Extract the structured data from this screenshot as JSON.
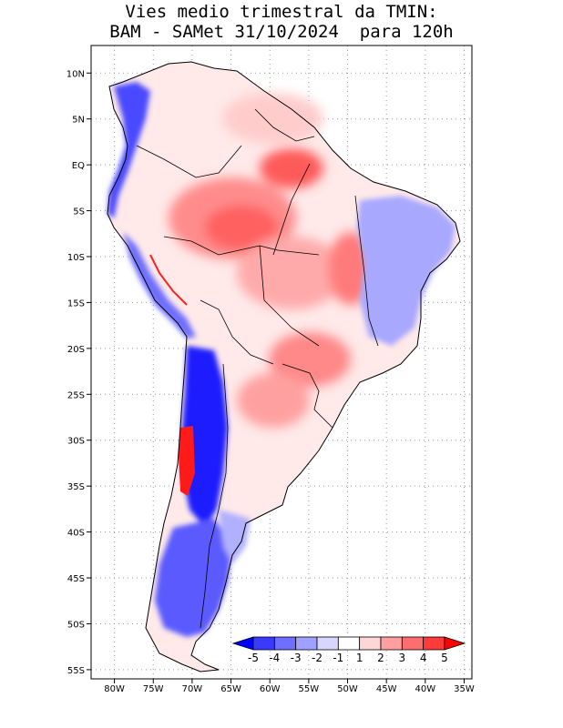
{
  "title": {
    "line1": "Vies medio trimestral da TMIN:",
    "line2": "BAM - SAMet 31/10/2024  para 120h"
  },
  "map": {
    "lon_range": [
      -83,
      -34
    ],
    "lat_range": [
      -56,
      13
    ],
    "lon_ticks": [
      {
        "value": -80,
        "label": "80W"
      },
      {
        "value": -75,
        "label": "75W"
      },
      {
        "value": -70,
        "label": "70W"
      },
      {
        "value": -65,
        "label": "65W"
      },
      {
        "value": -60,
        "label": "60W"
      },
      {
        "value": -55,
        "label": "55W"
      },
      {
        "value": -50,
        "label": "50W"
      },
      {
        "value": -45,
        "label": "45W"
      },
      {
        "value": -40,
        "label": "40W"
      },
      {
        "value": -35,
        "label": "35W"
      }
    ],
    "lat_ticks": [
      {
        "value": 10,
        "label": "10N"
      },
      {
        "value": 5,
        "label": "5N"
      },
      {
        "value": 0,
        "label": "EQ"
      },
      {
        "value": -5,
        "label": "5S"
      },
      {
        "value": -10,
        "label": "10S"
      },
      {
        "value": -15,
        "label": "15S"
      },
      {
        "value": -20,
        "label": "20S"
      },
      {
        "value": -25,
        "label": "25S"
      },
      {
        "value": -30,
        "label": "30S"
      },
      {
        "value": -35,
        "label": "35S"
      },
      {
        "value": -40,
        "label": "40S"
      },
      {
        "value": -45,
        "label": "45S"
      },
      {
        "value": -50,
        "label": "50S"
      },
      {
        "value": -55,
        "label": "55S"
      }
    ],
    "grid": "dotted"
  },
  "colorbar": {
    "labels": [
      "-5",
      "-4",
      "-3",
      "-2",
      "-1",
      "1",
      "2",
      "3",
      "4",
      "5"
    ],
    "colors": [
      "#0000ff",
      "#3a3aff",
      "#6e6eff",
      "#a0a0ff",
      "#d6d6ff",
      "#ffffff",
      "#ffd6d6",
      "#ff9f9f",
      "#ff6e6e",
      "#ff3a3a",
      "#ff0000"
    ],
    "placement": "bottom-right"
  }
}
